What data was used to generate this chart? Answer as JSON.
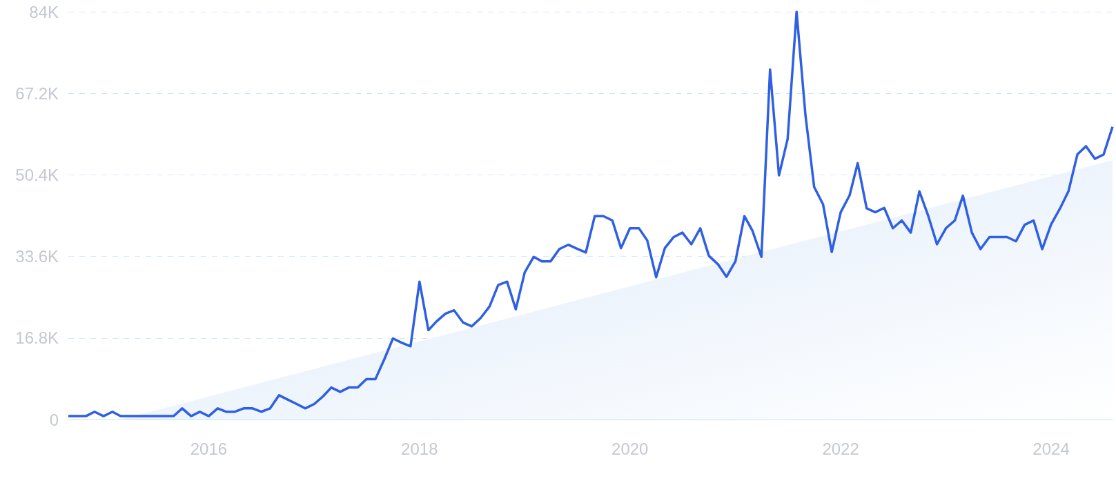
{
  "chart_data": {
    "type": "line",
    "x": [
      "2014-09",
      "2014-10",
      "2014-11",
      "2014-12",
      "2015-01",
      "2015-02",
      "2015-03",
      "2015-04",
      "2015-05",
      "2015-06",
      "2015-07",
      "2015-08",
      "2015-09",
      "2015-10",
      "2015-11",
      "2015-12",
      "2016-01",
      "2016-02",
      "2016-03",
      "2016-04",
      "2016-05",
      "2016-06",
      "2016-07",
      "2016-08",
      "2016-09",
      "2016-10",
      "2016-11",
      "2016-12",
      "2017-01",
      "2017-02",
      "2017-03",
      "2017-04",
      "2017-05",
      "2017-06",
      "2017-07",
      "2017-08",
      "2017-09",
      "2017-10",
      "2017-11",
      "2017-12",
      "2018-01",
      "2018-02",
      "2018-03",
      "2018-04",
      "2018-05",
      "2018-06",
      "2018-07",
      "2018-08",
      "2018-09",
      "2018-10",
      "2018-11",
      "2018-12",
      "2019-01",
      "2019-02",
      "2019-03",
      "2019-04",
      "2019-05",
      "2019-06",
      "2019-07",
      "2019-08",
      "2019-09",
      "2019-10",
      "2019-11",
      "2019-12",
      "2020-01",
      "2020-02",
      "2020-03",
      "2020-04",
      "2020-05",
      "2020-06",
      "2020-07",
      "2020-08",
      "2020-09",
      "2020-10",
      "2020-11",
      "2020-12",
      "2021-01",
      "2021-02",
      "2021-03",
      "2021-04",
      "2021-05",
      "2021-06",
      "2021-07",
      "2021-08",
      "2021-09",
      "2021-10",
      "2021-11",
      "2021-12",
      "2022-01",
      "2022-02",
      "2022-03",
      "2022-04",
      "2022-05",
      "2022-06",
      "2022-07",
      "2022-08",
      "2022-09",
      "2022-10",
      "2022-11",
      "2022-12",
      "2023-01",
      "2023-02",
      "2023-03",
      "2023-04",
      "2023-05",
      "2023-06",
      "2023-07",
      "2023-08",
      "2023-09",
      "2023-10",
      "2023-11",
      "2023-12",
      "2024-01",
      "2024-02",
      "2024-03",
      "2024-04",
      "2024-05",
      "2024-06",
      "2024-07",
      "2024-08"
    ],
    "series": [
      {
        "color": "#2f5fe3",
        "values": [
          700,
          700,
          700,
          1600,
          700,
          1600,
          700,
          700,
          700,
          700,
          700,
          700,
          700,
          2300,
          700,
          1600,
          700,
          2300,
          1600,
          1600,
          2300,
          2300,
          1600,
          2300,
          5000,
          4100,
          3200,
          2300,
          3200,
          4800,
          6600,
          5700,
          6600,
          6600,
          8300,
          8300,
          12400,
          16700,
          15800,
          15100,
          28400,
          18400,
          20200,
          21800,
          22500,
          20000,
          19200,
          20900,
          23300,
          27700,
          28400,
          22700,
          30300,
          33500,
          32600,
          32600,
          35100,
          36000,
          35200,
          34400,
          41900,
          41900,
          41000,
          35300,
          39400,
          39400,
          36900,
          29300,
          35300,
          37600,
          38500,
          36100,
          39400,
          33700,
          32000,
          29400,
          32600,
          41900,
          38900,
          33500,
          72100,
          50300,
          57800,
          84000,
          62600,
          47900,
          44300,
          34500,
          42700,
          46200,
          52800,
          43500,
          42700,
          43600,
          39400,
          41000,
          38500,
          47000,
          41900,
          36100,
          39400,
          41000,
          46100,
          38500,
          35100,
          37600,
          37600,
          37600,
          36700,
          40100,
          41000,
          35100,
          40200,
          43500,
          47000,
          54600,
          56300,
          53700,
          54600,
          60300
        ]
      },
      {
        "type": "area",
        "color": "#dce9fa",
        "x": [
          "2015-03",
          "2024-08"
        ],
        "values": [
          0,
          53400
        ]
      }
    ],
    "xlim": [
      "2014-09",
      "2024-08"
    ],
    "xticks": [
      "2016",
      "2018",
      "2020",
      "2022",
      "2024"
    ],
    "ylim": [
      0,
      84000
    ],
    "yticks": [
      0,
      {
        "value": 16800,
        "label": "16.8K"
      },
      {
        "value": 33600,
        "label": "33.6K"
      },
      {
        "value": 50400,
        "label": "50.4K"
      },
      {
        "value": 67200,
        "label": "67.2K"
      },
      {
        "value": 84000,
        "label": "84K"
      }
    ],
    "grid": "y",
    "marker": "none",
    "line_style": "solid"
  }
}
